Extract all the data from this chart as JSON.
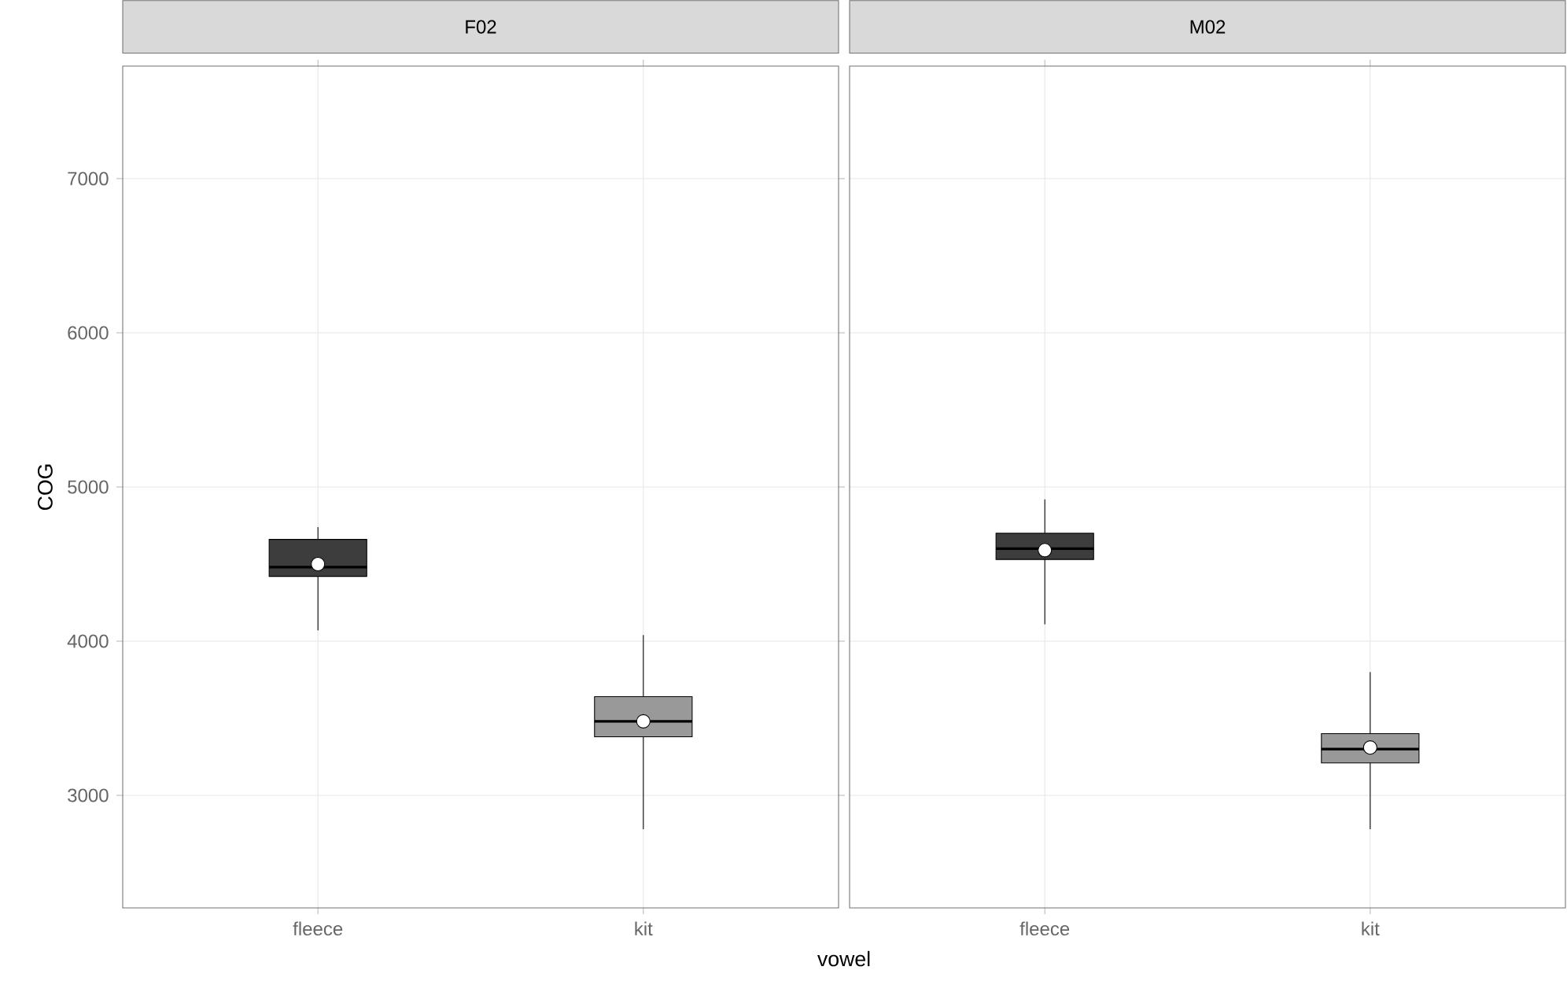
{
  "chart_data": [
    {
      "type": "box",
      "title": "F02",
      "xlabel": "vowel",
      "ylabel": "COG",
      "categories": [
        "fleece",
        "kit"
      ],
      "colors": [
        "#3d3d3d",
        "#999999"
      ],
      "boxes": [
        {
          "low": 4070,
          "q1": 4420,
          "median": 4480,
          "q3": 4660,
          "high": 4740,
          "mean": 4500
        },
        {
          "low": 2780,
          "q1": 3380,
          "median": 3480,
          "q3": 3640,
          "high": 4040,
          "mean": 3480
        }
      ],
      "ylim": [
        2270,
        7730
      ],
      "yticks": [
        3000,
        4000,
        5000,
        6000,
        7000
      ],
      "grid": true
    },
    {
      "type": "box",
      "title": "M02",
      "categories": [
        "fleece",
        "kit"
      ],
      "colors": [
        "#3d3d3d",
        "#999999"
      ],
      "boxes": [
        {
          "low": 4110,
          "q1": 4530,
          "median": 4600,
          "q3": 4700,
          "high": 4920,
          "mean": 4590
        },
        {
          "low": 2780,
          "q1": 3210,
          "median": 3300,
          "q3": 3400,
          "high": 3800,
          "mean": 3310
        }
      ],
      "ylim": [
        2270,
        7730
      ],
      "yticks": [
        3000,
        4000,
        5000,
        6000,
        7000
      ],
      "grid": true,
      "tick_labels": "x"
    }
  ]
}
